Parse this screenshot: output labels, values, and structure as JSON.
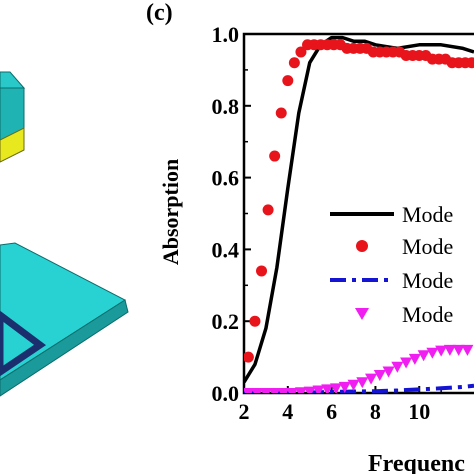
{
  "panel_label": "(c)",
  "chart_data": {
    "type": "line",
    "title": "",
    "xlabel": "Frequenc",
    "ylabel": "Absorption",
    "xlim": [
      2,
      12.5
    ],
    "ylim": [
      0,
      1.0
    ],
    "xticks": [
      "2",
      "4",
      "6",
      "8",
      "10"
    ],
    "yticks": [
      "0.0",
      "0.2",
      "0.4",
      "0.6",
      "0.8",
      "1.0"
    ],
    "grid": false,
    "legend_position": "right",
    "series": [
      {
        "name": "Mode",
        "style": "solid-line",
        "color": "#000000",
        "x": [
          2.0,
          2.5,
          3.0,
          3.5,
          4.0,
          4.5,
          5.0,
          5.5,
          6.0,
          6.5,
          7.0,
          7.5,
          8.0,
          9.0,
          10.0,
          11.0,
          12.0,
          12.5
        ],
        "y": [
          0.03,
          0.08,
          0.18,
          0.35,
          0.57,
          0.78,
          0.92,
          0.97,
          0.99,
          0.99,
          0.98,
          0.98,
          0.97,
          0.96,
          0.97,
          0.97,
          0.96,
          0.95
        ]
      },
      {
        "name": "Mode",
        "style": "circle-markers",
        "color": "#e8141c",
        "x": [
          2.2,
          2.5,
          2.8,
          3.1,
          3.4,
          3.7,
          4.0,
          4.3,
          4.6,
          4.9,
          5.2,
          5.5,
          5.8,
          6.1,
          6.4,
          6.7,
          7.0,
          7.3,
          7.6,
          7.9,
          8.2,
          8.5,
          8.8,
          9.1,
          9.4,
          9.7,
          10.0,
          10.3,
          10.6,
          10.9,
          11.2,
          11.5,
          11.8,
          12.1,
          12.4
        ],
        "y": [
          0.1,
          0.2,
          0.34,
          0.51,
          0.66,
          0.78,
          0.87,
          0.92,
          0.95,
          0.97,
          0.97,
          0.97,
          0.97,
          0.97,
          0.97,
          0.96,
          0.96,
          0.96,
          0.96,
          0.95,
          0.95,
          0.95,
          0.95,
          0.95,
          0.94,
          0.94,
          0.94,
          0.94,
          0.93,
          0.93,
          0.93,
          0.92,
          0.92,
          0.92,
          0.92
        ]
      },
      {
        "name": "Mode",
        "style": "dash-dot-line",
        "color": "#1414d2",
        "x": [
          2.0,
          4.0,
          6.0,
          8.0,
          9.0,
          10.0,
          11.0,
          12.0,
          12.5
        ],
        "y": [
          0.0,
          0.0,
          0.003,
          0.005,
          0.007,
          0.01,
          0.013,
          0.017,
          0.02
        ]
      },
      {
        "name": "Mode",
        "style": "triangle-markers",
        "color": "#f01ef0",
        "x": [
          2.2,
          2.6,
          3.0,
          3.4,
          3.8,
          4.2,
          4.6,
          5.0,
          5.4,
          5.8,
          6.2,
          6.6,
          7.0,
          7.4,
          7.8,
          8.2,
          8.6,
          9.0,
          9.4,
          9.8,
          10.2,
          10.6,
          11.0,
          11.4,
          11.8,
          12.2
        ],
        "y": [
          0.0,
          0.0,
          0.0,
          0.0,
          0.0,
          0.0,
          0.002,
          0.004,
          0.007,
          0.01,
          0.013,
          0.017,
          0.023,
          0.03,
          0.04,
          0.05,
          0.06,
          0.073,
          0.085,
          0.095,
          0.105,
          0.112,
          0.118,
          0.12,
          0.12,
          0.12
        ]
      }
    ]
  }
}
